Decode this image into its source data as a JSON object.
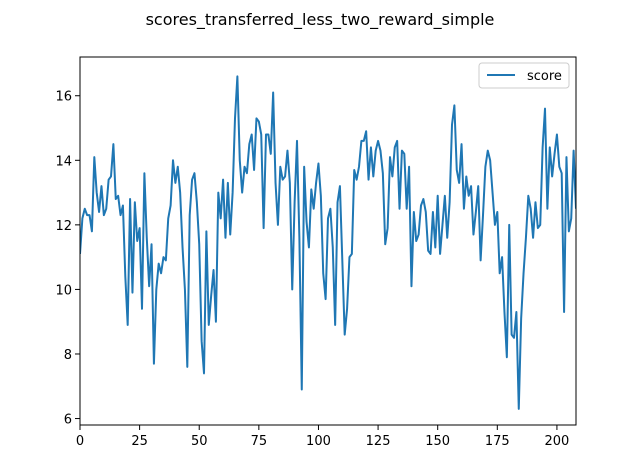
{
  "chart_data": {
    "type": "line",
    "title": "scores_transferred_less_two_reward_simple",
    "xlabel": "",
    "ylabel": "",
    "xlim": [
      0,
      208
    ],
    "ylim": [
      5.8,
      17.2
    ],
    "xticks": [
      0,
      25,
      50,
      75,
      100,
      125,
      150,
      175,
      200
    ],
    "yticks": [
      6,
      8,
      10,
      12,
      14,
      16
    ],
    "grid": false,
    "legend": {
      "placement": "top-right"
    },
    "series": [
      {
        "name": "score",
        "color": "#1f77b4",
        "x": [
          0,
          1,
          2,
          3,
          4,
          5,
          6,
          7,
          8,
          9,
          10,
          11,
          12,
          13,
          14,
          15,
          16,
          17,
          18,
          19,
          20,
          21,
          22,
          23,
          24,
          25,
          26,
          27,
          28,
          29,
          30,
          31,
          32,
          33,
          34,
          35,
          36,
          37,
          38,
          39,
          40,
          41,
          42,
          43,
          44,
          45,
          46,
          47,
          48,
          49,
          50,
          51,
          52,
          53,
          54,
          55,
          56,
          57,
          58,
          59,
          60,
          61,
          62,
          63,
          64,
          65,
          66,
          67,
          68,
          69,
          70,
          71,
          72,
          73,
          74,
          75,
          76,
          77,
          78,
          79,
          80,
          81,
          82,
          83,
          84,
          85,
          86,
          87,
          88,
          89,
          90,
          91,
          92,
          93,
          94,
          95,
          96,
          97,
          98,
          99,
          100,
          101,
          102,
          103,
          104,
          105,
          106,
          107,
          108,
          109,
          110,
          111,
          112,
          113,
          114,
          115,
          116,
          117,
          118,
          119,
          120,
          121,
          122,
          123,
          124,
          125,
          126,
          127,
          128,
          129,
          130,
          131,
          132,
          133,
          134,
          135,
          136,
          137,
          138,
          139,
          140,
          141,
          142,
          143,
          144,
          145,
          146,
          147,
          148,
          149,
          150,
          151,
          152,
          153,
          154,
          155,
          156,
          157,
          158,
          159,
          160,
          161,
          162,
          163,
          164,
          165,
          166,
          167,
          168,
          169,
          170,
          171,
          172,
          173,
          174,
          175,
          176,
          177,
          178,
          179,
          180,
          181,
          182,
          183,
          184,
          185,
          186,
          187,
          188,
          189,
          190,
          191,
          192,
          193,
          194,
          195,
          196,
          197,
          198,
          199,
          200,
          201,
          202,
          203,
          204,
          205,
          206,
          207,
          208
        ],
        "values": [
          11.1,
          12.2,
          12.5,
          12.3,
          12.3,
          11.8,
          14.1,
          13.0,
          12.4,
          13.2,
          12.3,
          12.5,
          13.4,
          13.5,
          14.5,
          12.8,
          12.9,
          12.3,
          12.6,
          10.4,
          8.9,
          12.8,
          9.9,
          12.7,
          11.5,
          11.9,
          9.4,
          13.6,
          11.6,
          10.1,
          11.4,
          7.7,
          10.0,
          10.8,
          10.5,
          11.0,
          10.9,
          12.2,
          12.6,
          14.0,
          13.3,
          13.8,
          13.0,
          11.3,
          10.0,
          7.6,
          12.3,
          13.4,
          13.6,
          12.7,
          11.4,
          8.4,
          7.4,
          11.8,
          8.9,
          9.8,
          10.6,
          9.0,
          13.0,
          12.2,
          13.4,
          11.6,
          13.3,
          11.7,
          13.0,
          15.3,
          16.6,
          14.0,
          13.0,
          13.8,
          13.6,
          14.5,
          14.8,
          13.7,
          15.3,
          15.2,
          14.8,
          11.9,
          14.8,
          14.8,
          14.2,
          16.1,
          13.3,
          12.0,
          13.8,
          13.4,
          13.5,
          14.3,
          13.3,
          10.0,
          12.7,
          14.6,
          11.6,
          6.9,
          13.8,
          12.1,
          11.3,
          13.1,
          12.5,
          13.3,
          13.9,
          12.9,
          10.5,
          9.7,
          12.2,
          12.5,
          11.3,
          8.9,
          12.7,
          13.2,
          10.9,
          8.6,
          9.4,
          11.0,
          11.1,
          13.7,
          13.4,
          13.8,
          14.6,
          14.6,
          14.9,
          13.4,
          14.4,
          13.5,
          14.3,
          14.6,
          14.3,
          13.6,
          11.4,
          11.9,
          14.1,
          13.5,
          14.4,
          14.6,
          12.5,
          14.3,
          14.2,
          12.5,
          13.8,
          10.1,
          12.4,
          11.5,
          11.7,
          12.6,
          12.8,
          12.4,
          11.2,
          11.1,
          12.4,
          11.3,
          12.9,
          11.1,
          12.0,
          12.9,
          11.6,
          12.7,
          15.1,
          15.7,
          13.7,
          13.3,
          14.5,
          12.5,
          13.5,
          12.9,
          13.2,
          11.7,
          12.4,
          13.2,
          10.9,
          12.3,
          13.8,
          14.3,
          14.0,
          13.0,
          12.0,
          12.4,
          10.5,
          11.0,
          9.3,
          7.9,
          12.0,
          8.6,
          8.5,
          9.3,
          6.3,
          9.1,
          10.5,
          11.6,
          12.9,
          12.5,
          11.6,
          12.7,
          11.9,
          12.0,
          14.4,
          15.6,
          12.5,
          14.4,
          13.5,
          14.2,
          14.8,
          13.8,
          13.6,
          9.3,
          14.1,
          11.8,
          12.2,
          14.3,
          12.5
        ]
      }
    ]
  }
}
